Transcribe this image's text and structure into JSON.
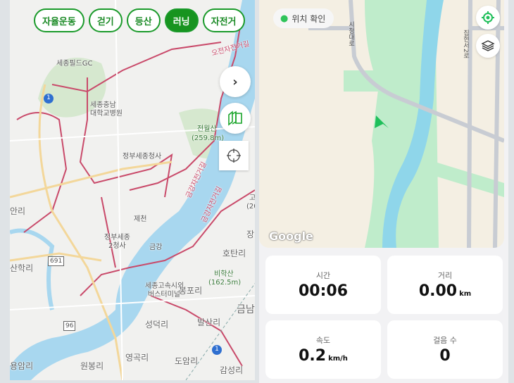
{
  "activity_chips": [
    {
      "label": "자율운동",
      "active": false
    },
    {
      "label": "걷기",
      "active": false
    },
    {
      "label": "등산",
      "active": false
    },
    {
      "label": "러닝",
      "active": true
    },
    {
      "label": "자전거",
      "active": false
    }
  ],
  "left_map": {
    "labels": [
      "세종필드GC",
      "세종충남",
      "대학교병원",
      "전월산",
      "(259.8m)",
      "정부세종청사",
      "금강자전거길",
      "금강자전거길",
      "고",
      "(20",
      "안리",
      "제천",
      "정부세종",
      "2청사",
      "장",
      "금강",
      "호탄리",
      "산학리",
      "비학산",
      "(162.5m)",
      "세종고속시외",
      "버스터미널",
      "봉포리",
      "금남",
      "성덕리",
      "발산리",
      "용암리",
      "원봉리",
      "영곡리",
      "도암리",
      "감성리",
      "오전자전거길"
    ],
    "route_shields": [
      "1",
      "691",
      "96",
      "1"
    ],
    "buttons": {
      "expand": "chevron-right-icon",
      "layers": "3d-layers-icon",
      "locate": "crosshair-icon"
    }
  },
  "right_map": {
    "location_check": "위치 확인",
    "road_labels": [
      "시청대로",
      "집현서2로"
    ],
    "attribution": "Google",
    "colors": {
      "land": "#f4efe3",
      "river": "#8fd6ea",
      "park": "#bfeccb",
      "marker": "#1fbf5a"
    }
  },
  "stats": [
    {
      "title": "시간",
      "value": "00:06",
      "unit": ""
    },
    {
      "title": "거리",
      "value": "0.00",
      "unit": "km"
    },
    {
      "title": "속도",
      "value": "0.2",
      "unit": "km/h"
    },
    {
      "title": "걸음 수",
      "value": "0",
      "unit": ""
    }
  ],
  "accent": "#17941f"
}
